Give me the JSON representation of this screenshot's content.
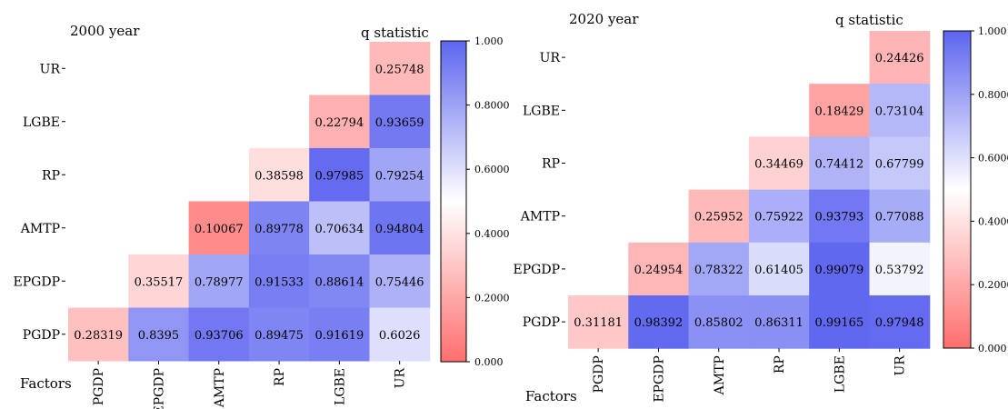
{
  "chart_data": [
    {
      "type": "heatmap",
      "title": "2000 year",
      "legend_label": "q statistic",
      "xlabel": "Factors",
      "factors": [
        "PGDP",
        "EPGDP",
        "AMTP",
        "RP",
        "LGBE",
        "UR"
      ],
      "colorbar": {
        "range": [
          0,
          1
        ],
        "tick_values": [
          0,
          0.2,
          0.4,
          0.6,
          0.8,
          1.0
        ],
        "tick_labels": [
          "0.000",
          "0.2000",
          "0.4000",
          "0.6000",
          "0.8000",
          "1.000"
        ],
        "colors": [
          "#ff6e6e",
          "#ffffff",
          "#5d65ef"
        ]
      },
      "cells": [
        {
          "row": "UR",
          "col": "UR",
          "value": 0.25748,
          "label": "0.25748"
        },
        {
          "row": "LGBE",
          "col": "LGBE",
          "value": 0.22794,
          "label": "0.22794"
        },
        {
          "row": "LGBE",
          "col": "UR",
          "value": 0.93659,
          "label": "0.93659"
        },
        {
          "row": "RP",
          "col": "RP",
          "value": 0.38598,
          "label": "0.38598"
        },
        {
          "row": "RP",
          "col": "LGBE",
          "value": 0.97985,
          "label": "0.97985"
        },
        {
          "row": "RP",
          "col": "UR",
          "value": 0.79254,
          "label": "0.79254"
        },
        {
          "row": "AMTP",
          "col": "AMTP",
          "value": 0.10067,
          "label": "0.10067"
        },
        {
          "row": "AMTP",
          "col": "RP",
          "value": 0.89778,
          "label": "0.89778"
        },
        {
          "row": "AMTP",
          "col": "LGBE",
          "value": 0.70634,
          "label": "0.70634"
        },
        {
          "row": "AMTP",
          "col": "UR",
          "value": 0.94804,
          "label": "0.94804"
        },
        {
          "row": "EPGDP",
          "col": "EPGDP",
          "value": 0.35517,
          "label": "0.35517"
        },
        {
          "row": "EPGDP",
          "col": "AMTP",
          "value": 0.78977,
          "label": "0.78977"
        },
        {
          "row": "EPGDP",
          "col": "RP",
          "value": 0.91533,
          "label": "0.91533"
        },
        {
          "row": "EPGDP",
          "col": "LGBE",
          "value": 0.88614,
          "label": "0.88614"
        },
        {
          "row": "EPGDP",
          "col": "UR",
          "value": 0.75446,
          "label": "0.75446"
        },
        {
          "row": "PGDP",
          "col": "PGDP",
          "value": 0.28319,
          "label": "0.28319"
        },
        {
          "row": "PGDP",
          "col": "EPGDP",
          "value": 0.8395,
          "label": "0.8395"
        },
        {
          "row": "PGDP",
          "col": "AMTP",
          "value": 0.93706,
          "label": "0.93706"
        },
        {
          "row": "PGDP",
          "col": "RP",
          "value": 0.89475,
          "label": "0.89475"
        },
        {
          "row": "PGDP",
          "col": "LGBE",
          "value": 0.91619,
          "label": "0.91619"
        },
        {
          "row": "PGDP",
          "col": "UR",
          "value": 0.6026,
          "label": "0.6026"
        }
      ]
    },
    {
      "type": "heatmap",
      "title": "2020 year",
      "legend_label": "q statistic",
      "xlabel": "Factors",
      "factors": [
        "PGDP",
        "EPGDP",
        "AMTP",
        "RP",
        "LGBE",
        "UR"
      ],
      "colorbar": {
        "range": [
          0,
          1
        ],
        "tick_values": [
          0,
          0.2,
          0.4,
          0.6,
          0.8,
          1.0
        ],
        "tick_labels": [
          "0.000",
          "0.2000",
          "0.4000",
          "0.6000",
          "0.8000",
          "1.000"
        ],
        "colors": [
          "#ff6e6e",
          "#ffffff",
          "#5d65ef"
        ]
      },
      "cells": [
        {
          "row": "UR",
          "col": "UR",
          "value": 0.24426,
          "label": "0.24426"
        },
        {
          "row": "LGBE",
          "col": "LGBE",
          "value": 0.18429,
          "label": "0.18429"
        },
        {
          "row": "LGBE",
          "col": "UR",
          "value": 0.73104,
          "label": "0.73104"
        },
        {
          "row": "RP",
          "col": "RP",
          "value": 0.34469,
          "label": "0.34469"
        },
        {
          "row": "RP",
          "col": "LGBE",
          "value": 0.74412,
          "label": "0.74412"
        },
        {
          "row": "RP",
          "col": "UR",
          "value": 0.67799,
          "label": "0.67799"
        },
        {
          "row": "AMTP",
          "col": "AMTP",
          "value": 0.25952,
          "label": "0.25952"
        },
        {
          "row": "AMTP",
          "col": "RP",
          "value": 0.75922,
          "label": "0.75922"
        },
        {
          "row": "AMTP",
          "col": "LGBE",
          "value": 0.93793,
          "label": "0.93793"
        },
        {
          "row": "AMTP",
          "col": "UR",
          "value": 0.77088,
          "label": "0.77088"
        },
        {
          "row": "EPGDP",
          "col": "EPGDP",
          "value": 0.24954,
          "label": "0.24954"
        },
        {
          "row": "EPGDP",
          "col": "AMTP",
          "value": 0.78322,
          "label": "0.78322"
        },
        {
          "row": "EPGDP",
          "col": "RP",
          "value": 0.61405,
          "label": "0.61405"
        },
        {
          "row": "EPGDP",
          "col": "LGBE",
          "value": 0.99079,
          "label": "0.99079"
        },
        {
          "row": "EPGDP",
          "col": "UR",
          "value": 0.53792,
          "label": "0.53792"
        },
        {
          "row": "PGDP",
          "col": "PGDP",
          "value": 0.31181,
          "label": "0.31181"
        },
        {
          "row": "PGDP",
          "col": "EPGDP",
          "value": 0.98392,
          "label": "0.98392"
        },
        {
          "row": "PGDP",
          "col": "AMTP",
          "value": 0.85802,
          "label": "0.85802"
        },
        {
          "row": "PGDP",
          "col": "RP",
          "value": 0.86311,
          "label": "0.86311"
        },
        {
          "row": "PGDP",
          "col": "LGBE",
          "value": 0.99165,
          "label": "0.99165"
        },
        {
          "row": "PGDP",
          "col": "UR",
          "value": 0.97948,
          "label": "0.97948"
        }
      ]
    }
  ]
}
